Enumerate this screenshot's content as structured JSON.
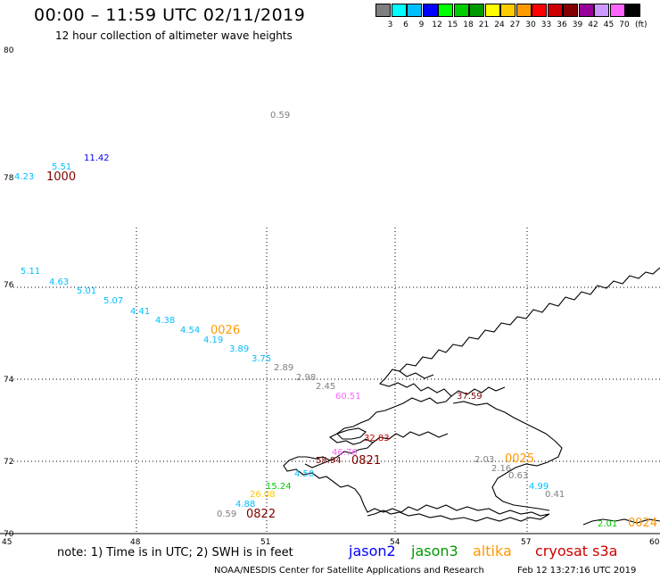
{
  "header": {
    "title": "00:00 – 11:59 UTC 02/11/2019",
    "subtitle": "12 hour collection of altimeter wave heights"
  },
  "legend": {
    "unit": "(ft)",
    "items": [
      {
        "label": "3",
        "color": "#7f7f7f"
      },
      {
        "label": "6",
        "color": "#00ffff"
      },
      {
        "label": "9",
        "color": "#00bfff"
      },
      {
        "label": "12",
        "color": "#0000ff"
      },
      {
        "label": "15",
        "color": "#00ff00"
      },
      {
        "label": "18",
        "color": "#00cc00"
      },
      {
        "label": "21",
        "color": "#009900"
      },
      {
        "label": "24",
        "color": "#ffff00"
      },
      {
        "label": "27",
        "color": "#ffcc00"
      },
      {
        "label": "30",
        "color": "#ff9900"
      },
      {
        "label": "33",
        "color": "#ff0000"
      },
      {
        "label": "36",
        "color": "#cc0000"
      },
      {
        "label": "39",
        "color": "#800000"
      },
      {
        "label": "42",
        "color": "#990099"
      },
      {
        "label": "45",
        "color": "#cc99ff"
      },
      {
        "label": "70",
        "color": "#ff66ff"
      },
      {
        "label": "",
        "color": "#000000"
      }
    ]
  },
  "axes": {
    "lat_ticks": [
      "80",
      "78",
      "76",
      "74",
      "72",
      "70"
    ],
    "lon_ticks": [
      "45",
      "48",
      "51",
      "54",
      "57",
      "60"
    ]
  },
  "observations": [
    {
      "text": "0.59",
      "color": "#7f7f7f"
    },
    {
      "text": "11.42",
      "color": "#0000ff"
    },
    {
      "text": "5.51",
      "color": "#00bfff"
    },
    {
      "text": "4.23",
      "color": "#00bfff"
    },
    {
      "text": "5.11",
      "color": "#00bfff"
    },
    {
      "text": "4.63",
      "color": "#00bfff"
    },
    {
      "text": "5.01",
      "color": "#00bfff"
    },
    {
      "text": "5.07",
      "color": "#00bfff"
    },
    {
      "text": "4.41",
      "color": "#00bfff"
    },
    {
      "text": "4.38",
      "color": "#00bfff"
    },
    {
      "text": "4.54",
      "color": "#00bfff"
    },
    {
      "text": "4.19",
      "color": "#00bfff"
    },
    {
      "text": "3.89",
      "color": "#00bfff"
    },
    {
      "text": "3.75",
      "color": "#00bfff"
    },
    {
      "text": "2.89",
      "color": "#7f7f7f"
    },
    {
      "text": "2.98",
      "color": "#7f7f7f"
    },
    {
      "text": "2.45",
      "color": "#7f7f7f"
    },
    {
      "text": "60.51",
      "color": "#ff66ff"
    },
    {
      "text": "37.59",
      "color": "#800000"
    },
    {
      "text": "32.83",
      "color": "#cc0000"
    },
    {
      "text": "58.94",
      "color": "#800000"
    },
    {
      "text": "46.76",
      "color": "#ff66ff"
    },
    {
      "text": "4.50",
      "color": "#00bfff"
    },
    {
      "text": "15.24",
      "color": "#00cc00"
    },
    {
      "text": "26.08",
      "color": "#ffcc00"
    },
    {
      "text": "4.88",
      "color": "#00bfff"
    },
    {
      "text": "0.59",
      "color": "#7f7f7f"
    },
    {
      "text": "2.03",
      "color": "#7f7f7f"
    },
    {
      "text": "2.16",
      "color": "#7f7f7f"
    },
    {
      "text": "0.63",
      "color": "#7f7f7f"
    },
    {
      "text": "4.99",
      "color": "#00bfff"
    },
    {
      "text": "0.41",
      "color": "#7f7f7f"
    },
    {
      "text": "2.01",
      "color": "#00cc00"
    }
  ],
  "pass_times": [
    {
      "text": "1000",
      "color": "#800000"
    },
    {
      "text": "0026",
      "color": "#ff9900"
    },
    {
      "text": "0821",
      "color": "#800000"
    },
    {
      "text": "0822",
      "color": "#800000"
    },
    {
      "text": "0025",
      "color": "#ff9900"
    },
    {
      "text": "0024",
      "color": "#ff9900"
    }
  ],
  "footer": {
    "note": "note:  1) Time is in UTC;  2) SWH is in feet",
    "satellites": [
      {
        "name": "jason2",
        "color": "#0000ff"
      },
      {
        "name": "jason3",
        "color": "#009900"
      },
      {
        "name": "altika",
        "color": "#ff9900"
      },
      {
        "name": "cryosat s3a",
        "color": "#cc0000"
      }
    ],
    "credit": "NOAA/NESDIS Center for Satellite Applications and Research",
    "timestamp": "Feb 12 13:27:16 UTC 2019"
  }
}
